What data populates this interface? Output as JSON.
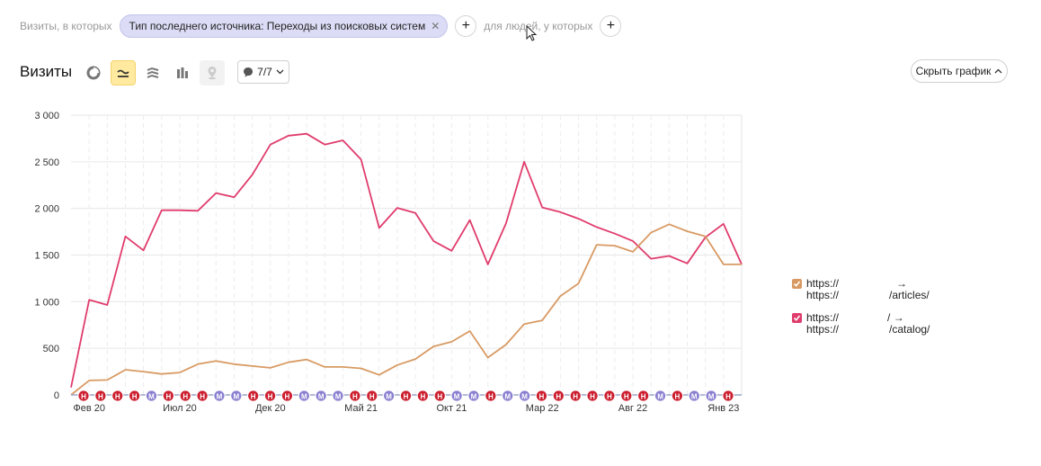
{
  "filter": {
    "prefix": "Визиты, в которых",
    "chip_label": "Тип последнего источника: Переходы из поисковых систем",
    "people_label": "для людей, у которых"
  },
  "toolbar": {
    "title": "Визиты",
    "notes_count": "7/7",
    "hide_chart_label": "Скрыть график"
  },
  "colors": {
    "series_articles": "#d89a63",
    "series_catalog": "#e03c6c",
    "grid": "#e6e6e6"
  },
  "legend": [
    {
      "line1_prefix": "https://",
      "line1_arrow": "→",
      "line2": "https://",
      "line2_suffix": "/articles/",
      "color": "#d89a63"
    },
    {
      "line1_prefix": "https://",
      "line1_suffix": "/ →",
      "line2": "https://",
      "line2_suffix": "/catalog/",
      "color": "#e03c6c"
    }
  ],
  "chart_data": {
    "type": "line",
    "x_tick_labels": [
      "Фев 20",
      "Июл 20",
      "Дек 20",
      "Май 21",
      "Окт 21",
      "Мар 22",
      "Авг 22",
      "Янв 23"
    ],
    "y_tick_labels": [
      "0",
      "500",
      "1 000",
      "1 500",
      "2 000",
      "2 500",
      "3 000"
    ],
    "ylim": [
      0,
      3000
    ],
    "grid": true,
    "legend_position": "right",
    "x": [
      "2020-01",
      "2020-02",
      "2020-03",
      "2020-04",
      "2020-05",
      "2020-06",
      "2020-07",
      "2020-08",
      "2020-09",
      "2020-10",
      "2020-11",
      "2020-12",
      "2021-01",
      "2021-02",
      "2021-03",
      "2021-04",
      "2021-05",
      "2021-06",
      "2021-07",
      "2021-08",
      "2021-09",
      "2021-10",
      "2021-11",
      "2021-12",
      "2022-01",
      "2022-02",
      "2022-03",
      "2022-04",
      "2022-05",
      "2022-06",
      "2022-07",
      "2022-08",
      "2022-09",
      "2022-10",
      "2022-11",
      "2022-12",
      "2023-01",
      "2023-02"
    ],
    "series": [
      {
        "color": "#e03c6c",
        "values": [
          80,
          1020,
          965,
          1700,
          1550,
          1980,
          1980,
          1975,
          2165,
          2120,
          2360,
          2685,
          2780,
          2800,
          2685,
          2730,
          2525,
          1790,
          2005,
          1950,
          1650,
          1545,
          1875,
          1400,
          1840,
          2500,
          2010,
          1960,
          1890,
          1800,
          1730,
          1650,
          1460,
          1490,
          1410,
          1690,
          1835,
          1400
        ]
      },
      {
        "color": "#d89a63",
        "values": [
          0,
          155,
          160,
          270,
          250,
          225,
          240,
          330,
          365,
          330,
          310,
          290,
          350,
          380,
          300,
          300,
          285,
          215,
          320,
          385,
          520,
          570,
          685,
          400,
          540,
          760,
          800,
          1060,
          1195,
          1610,
          1600,
          1535,
          1740,
          1830,
          1755,
          1700,
          1400,
          1400
        ]
      }
    ],
    "annotation_markers": [
      "Н",
      "Н",
      "Н",
      "Н",
      "М",
      "Н",
      "Н",
      "Н",
      "М",
      "М",
      "Н",
      "Н",
      "Н",
      "М",
      "М",
      "М",
      "Н",
      "Н",
      "М",
      "Н",
      "Н",
      "Н",
      "М",
      "М",
      "Н",
      "М",
      "М",
      "Н",
      "Н",
      "Н",
      "Н",
      "Н",
      "Н",
      "Н",
      "М",
      "Н",
      "М",
      "М",
      "Н"
    ]
  }
}
